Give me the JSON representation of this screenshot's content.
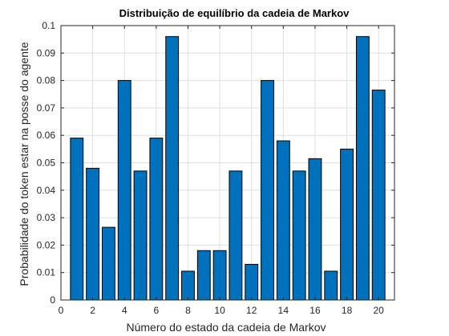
{
  "chart_data": {
    "type": "bar",
    "title": "Distribuição de equilíbrio da cadeia de Markov",
    "xlabel": "Número do estado da cadeia de Markov",
    "ylabel": "Probabilidade do token estar na posse do agente",
    "categories": [
      1,
      2,
      3,
      4,
      5,
      6,
      7,
      8,
      9,
      10,
      11,
      12,
      13,
      14,
      15,
      16,
      17,
      18,
      19,
      20
    ],
    "values": [
      0.059,
      0.048,
      0.0265,
      0.08,
      0.047,
      0.059,
      0.096,
      0.0105,
      0.018,
      0.018,
      0.047,
      0.013,
      0.08,
      0.058,
      0.047,
      0.0515,
      0.0105,
      0.055,
      0.096,
      0.0765
    ],
    "xlim": [
      0,
      21
    ],
    "ylim": [
      0,
      0.1
    ],
    "xticks": [
      "0",
      "2",
      "4",
      "6",
      "8",
      "10",
      "12",
      "14",
      "16",
      "18",
      "20"
    ],
    "xtick_values": [
      0,
      2,
      4,
      6,
      8,
      10,
      12,
      14,
      16,
      18,
      20
    ],
    "yticks": [
      "0",
      "0.01",
      "0.02",
      "0.03",
      "0.04",
      "0.05",
      "0.06",
      "0.07",
      "0.08",
      "0.09",
      "0.1"
    ],
    "ytick_values": [
      0,
      0.01,
      0.02,
      0.03,
      0.04,
      0.05,
      0.06,
      0.07,
      0.08,
      0.09,
      0.1
    ],
    "grid": true,
    "bar_color": "#0072BD"
  }
}
